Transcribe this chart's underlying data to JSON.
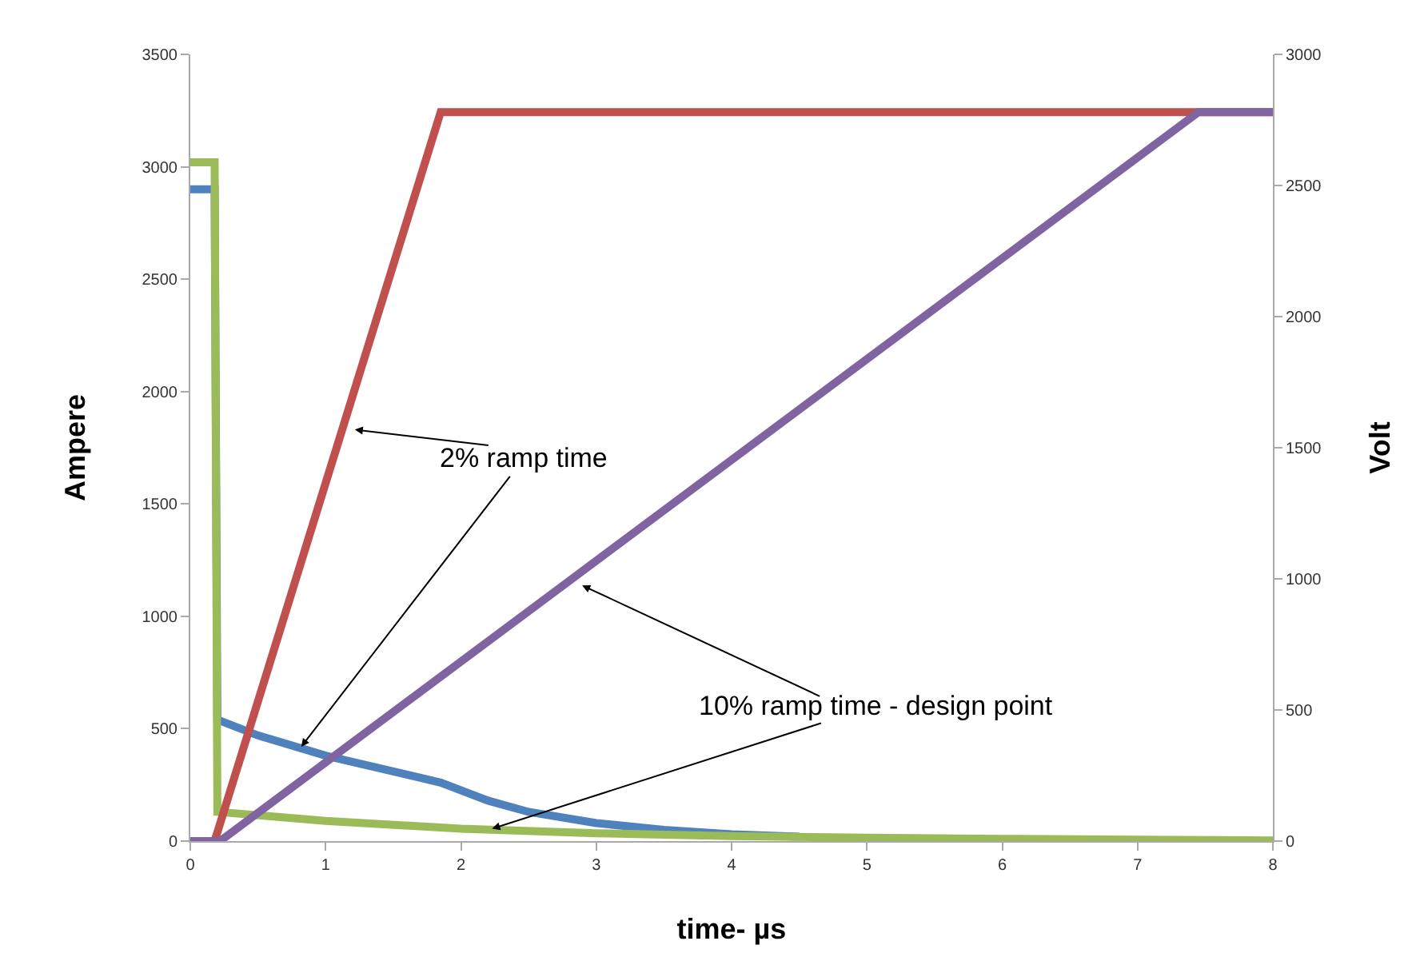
{
  "chart_data": {
    "type": "line",
    "xlabel": "time- µs",
    "ylabel": "Ampere",
    "y2label": "Volt",
    "xlim": [
      0,
      8
    ],
    "xticks": [
      0,
      1,
      2,
      3,
      4,
      5,
      6,
      7,
      8
    ],
    "ylim": [
      0,
      3500
    ],
    "yticks": [
      0,
      500,
      1000,
      1500,
      2000,
      2500,
      3000,
      3500
    ],
    "y2lim": [
      0,
      3000
    ],
    "y2ticks": [
      0,
      500,
      1000,
      1500,
      2000,
      2500,
      3000
    ],
    "marker": "none",
    "line_style": "solid",
    "series": [
      {
        "color": "#4f81bd",
        "x": [
          0,
          0.18,
          0.2,
          0.5,
          1,
          1.5,
          1.85,
          2.2,
          2.5,
          3,
          3.5,
          4,
          4.5
        ],
        "values": [
          2900,
          2900,
          540,
          470,
          380,
          310,
          260,
          180,
          130,
          80,
          50,
          30,
          20
        ]
      },
      {
        "color": "#c0504d",
        "axis": "y2",
        "x": [
          0,
          0.18,
          1.85,
          8
        ],
        "values": [
          0,
          0,
          2780,
          2780
        ]
      },
      {
        "color": "#8064a2",
        "axis": "y2",
        "x": [
          0,
          0.22,
          7.45,
          8
        ],
        "values": [
          0,
          0,
          2780,
          2780
        ]
      },
      {
        "color": "#9bbb59",
        "x": [
          0,
          0.18,
          0.2,
          1,
          2,
          3,
          4,
          5,
          6,
          7,
          8
        ],
        "values": [
          3020,
          3020,
          130,
          90,
          55,
          35,
          22,
          15,
          10,
          6,
          3
        ]
      }
    ],
    "annotations": [
      {
        "text": "2% ramp time",
        "x": 0.82,
        "y": 420
      },
      {
        "text": "10% ramp time - design point",
        "x": 2.23,
        "y": 55
      }
    ]
  }
}
